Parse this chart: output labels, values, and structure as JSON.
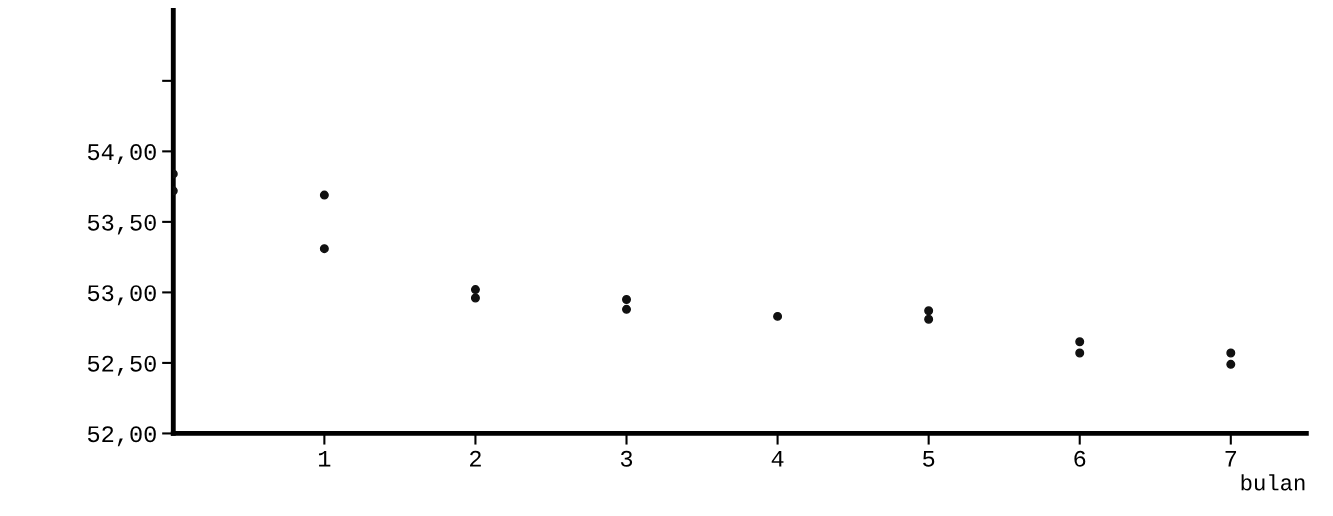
{
  "chart_data": {
    "type": "scatter",
    "xlabel": "bulan",
    "series": [
      {
        "color": "#111111",
        "x": [
          0,
          0,
          1,
          1,
          2,
          2,
          3,
          3,
          4,
          5,
          5,
          6,
          6,
          7,
          7
        ],
        "values": [
          53.84,
          53.72,
          53.69,
          53.31,
          53.02,
          52.96,
          52.95,
          52.88,
          52.83,
          52.87,
          52.81,
          52.65,
          52.57,
          52.57,
          52.49
        ]
      }
    ],
    "xlim": [
      0,
      7.5
    ],
    "xticks": [
      1,
      2,
      3,
      4,
      5,
      6,
      7
    ],
    "ylim": [
      52.0,
      55.0
    ],
    "yticks": [
      {
        "value": 52.0,
        "label": "52,00"
      },
      {
        "value": 52.5,
        "label": "52,50"
      },
      {
        "value": 53.0,
        "label": "53,00"
      },
      {
        "value": 53.5,
        "label": "53,50"
      },
      {
        "value": 54.0,
        "label": "54,00"
      },
      {
        "value": 54.5,
        "label": null
      }
    ],
    "marker": "circle",
    "grid": false,
    "legend": false
  }
}
